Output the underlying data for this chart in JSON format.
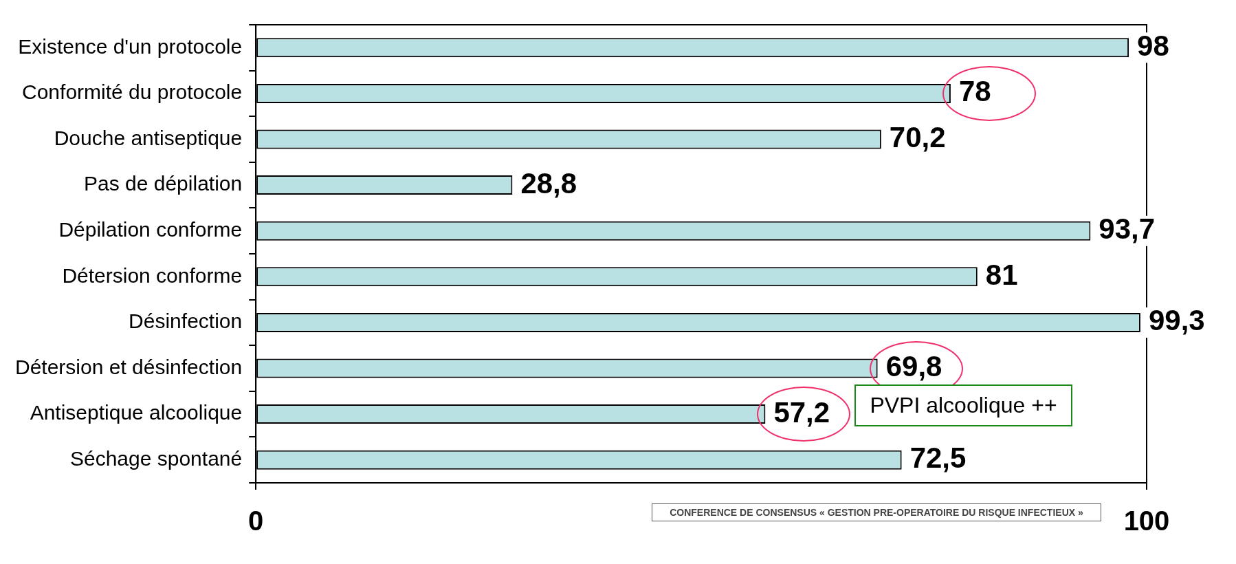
{
  "chart_data": {
    "type": "bar",
    "orientation": "horizontal",
    "categories": [
      "Existence d'un protocole",
      "Conformité du protocole",
      "Douche antiseptique",
      "Pas de dépilation",
      "Dépilation conforme",
      "Détersion conforme",
      "Désinfection",
      "Détersion et désinfection",
      "Antiseptique alcoolique",
      "Séchage spontané"
    ],
    "values": [
      98,
      78,
      70.2,
      28.8,
      93.7,
      81,
      99.3,
      69.8,
      57.2,
      72.5
    ],
    "value_labels": [
      "98",
      "78",
      "70,2",
      "28,8",
      "93,7",
      "81",
      "99,3",
      "69,8",
      "57,2",
      "72,5"
    ],
    "color": "#b9e0e3",
    "xlim": [
      0,
      100
    ],
    "xticks": [
      0,
      100
    ],
    "annotations": [
      "PVPI alcoolique ++",
      "CONFERENCE DE CONSENSUS « GESTION PRE-OPERATOIRE DU RISQUE INFECTIEUX »"
    ]
  }
}
